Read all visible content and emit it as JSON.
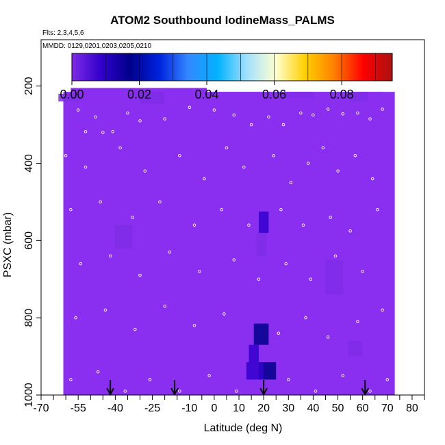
{
  "chart_data": {
    "type": "heatmap",
    "title": "ATOM2 Southbound IodineMass_PALMS",
    "flights_note": "Flts: 2,3,4,5,6",
    "dates_note": "MMDD: 0129,0201,0203,0205,0210",
    "xlabel": "Latitude (deg N)",
    "ylabel": "PSXC (mbar)",
    "xlim": [
      -70,
      85
    ],
    "ylim": [
      1000,
      80
    ],
    "y_inverted": true,
    "x_ticks": [
      -70,
      -55,
      -40,
      -25,
      -10,
      0,
      10,
      20,
      30,
      40,
      50,
      60,
      70,
      80
    ],
    "x_tick_labels": [
      "-70",
      "-55",
      "-40",
      "-25",
      "-10",
      "0",
      "10",
      "20",
      "30",
      "40",
      "50",
      "60",
      "70",
      "80"
    ],
    "x_minor_ticks": [
      -65,
      -60,
      -50,
      -45,
      -35,
      -30,
      -20,
      -15,
      -5,
      5,
      15,
      25,
      35,
      45,
      55,
      65,
      75,
      85
    ],
    "y_ticks": [
      200,
      400,
      600,
      800,
      1000
    ],
    "y_tick_labels": [
      "200",
      "400",
      "600",
      "800",
      "1000"
    ],
    "colorbar": {
      "range": [
        0,
        0.095
      ],
      "ticks": [
        0.0,
        0.02,
        0.04,
        0.06,
        0.08
      ],
      "tick_labels": [
        "0.00",
        "0.02",
        "0.04",
        "0.06",
        "0.08"
      ],
      "colors": [
        "#7f2be6",
        "#3300cc",
        "#00008b",
        "#0022dd",
        "#3388ff",
        "#00b2ff",
        "#a0e0ff",
        "#ffffd0",
        "#ffd000",
        "#ff8000",
        "#ff0000",
        "#aa1111"
      ]
    },
    "background_value": 0.001,
    "background_color": "#8a2ff0",
    "data_extent": [
      {
        "lat": [
          -60,
          -10
        ],
        "p": [
          240,
          1000
        ]
      },
      {
        "lat": [
          -60,
          72
        ],
        "p": [
          215,
          1000
        ]
      }
    ],
    "enhancements": [
      {
        "lat": [
          18,
          22
        ],
        "p": [
          525,
          580
        ],
        "value": 0.014
      },
      {
        "lat": [
          17,
          21
        ],
        "p": [
          580,
          640
        ],
        "value": 0.006
      },
      {
        "lat": [
          16,
          22
        ],
        "p": [
          815,
          870
        ],
        "value": 0.016
      },
      {
        "lat": [
          14,
          18
        ],
        "p": [
          870,
          915
        ],
        "value": 0.012
      },
      {
        "lat": [
          18,
          25
        ],
        "p": [
          915,
          960
        ],
        "value": 0.017
      },
      {
        "lat": [
          13,
          20
        ],
        "p": [
          915,
          960
        ],
        "value": 0.008
      },
      {
        "lat": [
          -30,
          -20
        ],
        "p": [
          215,
          245
        ],
        "value": 0.003
      },
      {
        "lat": [
          28,
          40
        ],
        "p": [
          215,
          230
        ],
        "value": 0.003
      },
      {
        "lat": [
          55,
          62
        ],
        "p": [
          215,
          240
        ],
        "value": 0.004
      },
      {
        "lat": [
          -63,
          -55
        ],
        "p": [
          220,
          240
        ],
        "value": 0.003
      },
      {
        "lat": [
          -40,
          -33
        ],
        "p": [
          560,
          620
        ],
        "value": 0.003
      },
      {
        "lat": [
          54,
          60
        ],
        "p": [
          860,
          900
        ],
        "value": 0.004
      },
      {
        "lat": [
          45,
          52
        ],
        "p": [
          650,
          740
        ],
        "value": 0.003
      }
    ],
    "arrow_markers_lat": [
      -42,
      -16,
      20,
      61
    ],
    "sample_points": [
      {
        "lat": -66,
        "p": 260
      },
      {
        "lat": -62,
        "p": 265
      },
      {
        "lat": -55,
        "p": 262
      },
      {
        "lat": -48,
        "p": 280
      },
      {
        "lat": -52,
        "p": 318
      },
      {
        "lat": -45,
        "p": 320
      },
      {
        "lat": -41,
        "p": 318
      },
      {
        "lat": -35,
        "p": 270
      },
      {
        "lat": -30,
        "p": 290
      },
      {
        "lat": -20,
        "p": 285
      },
      {
        "lat": -10,
        "p": 255
      },
      {
        "lat": 0,
        "p": 262
      },
      {
        "lat": 8,
        "p": 275
      },
      {
        "lat": 15,
        "p": 300
      },
      {
        "lat": 22,
        "p": 280
      },
      {
        "lat": 28,
        "p": 300
      },
      {
        "lat": 35,
        "p": 270
      },
      {
        "lat": 40,
        "p": 275
      },
      {
        "lat": 46,
        "p": 260
      },
      {
        "lat": 52,
        "p": 272
      },
      {
        "lat": 58,
        "p": 270
      },
      {
        "lat": 63,
        "p": 285
      },
      {
        "lat": 68,
        "p": 260
      },
      {
        "lat": -68,
        "p": 330
      },
      {
        "lat": -60,
        "p": 380
      },
      {
        "lat": -52,
        "p": 410
      },
      {
        "lat": -38,
        "p": 360
      },
      {
        "lat": -28,
        "p": 420
      },
      {
        "lat": -14,
        "p": 380
      },
      {
        "lat": -4,
        "p": 440
      },
      {
        "lat": 5,
        "p": 360
      },
      {
        "lat": 12,
        "p": 410
      },
      {
        "lat": 24,
        "p": 380
      },
      {
        "lat": 31,
        "p": 450
      },
      {
        "lat": 38,
        "p": 400
      },
      {
        "lat": 44,
        "p": 360
      },
      {
        "lat": 50,
        "p": 420
      },
      {
        "lat": 57,
        "p": 380
      },
      {
        "lat": 64,
        "p": 440
      },
      {
        "lat": -66,
        "p": 480
      },
      {
        "lat": -58,
        "p": 520
      },
      {
        "lat": -46,
        "p": 500
      },
      {
        "lat": -33,
        "p": 540
      },
      {
        "lat": -22,
        "p": 500
      },
      {
        "lat": -8,
        "p": 560
      },
      {
        "lat": 3,
        "p": 520
      },
      {
        "lat": 14,
        "p": 560
      },
      {
        "lat": 27,
        "p": 520
      },
      {
        "lat": 36,
        "p": 560
      },
      {
        "lat": 47,
        "p": 540
      },
      {
        "lat": 55,
        "p": 575
      },
      {
        "lat": 66,
        "p": 520
      },
      {
        "lat": -64,
        "p": 620
      },
      {
        "lat": -54,
        "p": 660
      },
      {
        "lat": -42,
        "p": 640
      },
      {
        "lat": -30,
        "p": 690
      },
      {
        "lat": -18,
        "p": 630
      },
      {
        "lat": -6,
        "p": 680
      },
      {
        "lat": 8,
        "p": 650
      },
      {
        "lat": 18,
        "p": 700
      },
      {
        "lat": 29,
        "p": 660
      },
      {
        "lat": 39,
        "p": 700
      },
      {
        "lat": 49,
        "p": 640
      },
      {
        "lat": 60,
        "p": 680
      },
      {
        "lat": -67,
        "p": 760
      },
      {
        "lat": -56,
        "p": 800
      },
      {
        "lat": -44,
        "p": 780
      },
      {
        "lat": -32,
        "p": 830
      },
      {
        "lat": -20,
        "p": 770
      },
      {
        "lat": -8,
        "p": 820
      },
      {
        "lat": 4,
        "p": 790
      },
      {
        "lat": 26,
        "p": 840
      },
      {
        "lat": 37,
        "p": 800
      },
      {
        "lat": 46,
        "p": 850
      },
      {
        "lat": 58,
        "p": 810
      },
      {
        "lat": 68,
        "p": 780
      },
      {
        "lat": -66,
        "p": 920
      },
      {
        "lat": -58,
        "p": 960
      },
      {
        "lat": -47,
        "p": 940
      },
      {
        "lat": -36,
        "p": 990
      },
      {
        "lat": -26,
        "p": 960
      },
      {
        "lat": -14,
        "p": 990
      },
      {
        "lat": -2,
        "p": 950
      },
      {
        "lat": 9,
        "p": 990
      },
      {
        "lat": 30,
        "p": 960
      },
      {
        "lat": 41,
        "p": 990
      },
      {
        "lat": 52,
        "p": 950
      },
      {
        "lat": 63,
        "p": 990
      },
      {
        "lat": 70,
        "p": 960
      }
    ]
  }
}
